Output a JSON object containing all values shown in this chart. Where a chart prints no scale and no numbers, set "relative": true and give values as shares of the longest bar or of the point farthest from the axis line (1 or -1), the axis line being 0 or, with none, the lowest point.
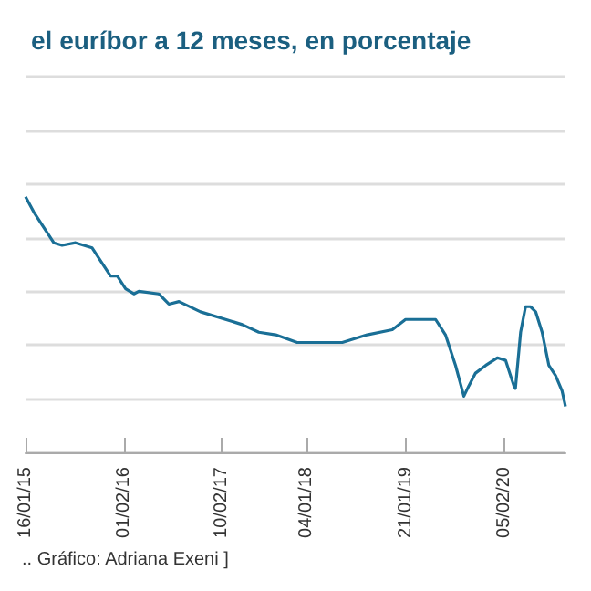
{
  "chart_data": {
    "type": "line",
    "title": "el euríbor a 12 meses, en porcentaje",
    "relative": true,
    "grid": "y",
    "tick_labels": "x",
    "marker": "none",
    "line_style": "solid",
    "annotations": [
      ".. Gráfico: Adriana Exeni ]"
    ],
    "xlim": [
      "2015-01-16",
      "2020-09-29"
    ],
    "xticks": [
      {
        "value": "2015-01-16",
        "label": "16/01/15"
      },
      {
        "value": "2016-02-01",
        "label": "01/02/16"
      },
      {
        "value": "2017-02-10",
        "label": "10/02/17"
      },
      {
        "value": "2018-01-04",
        "label": "04/01/18"
      },
      {
        "value": "2019-01-21",
        "label": "21/01/19"
      },
      {
        "value": "2020-02-05",
        "label": "05/02/20"
      }
    ],
    "x": [
      "2015-01-16",
      "2015-02-17",
      "2015-03-21",
      "2015-05-05",
      "2015-06-06",
      "2015-07-28",
      "2015-09-30",
      "2015-11-14",
      "2015-12-10",
      "2016-01-05",
      "2016-02-06",
      "2016-03-09",
      "2016-03-28",
      "2016-06-13",
      "2016-07-22",
      "2016-08-30",
      "2016-11-21",
      "2017-02-26",
      "2017-05-01",
      "2017-07-04",
      "2017-09-07",
      "2017-11-29",
      "2018-02-14",
      "2018-05-22",
      "2018-08-26",
      "2018-12-01",
      "2019-01-21",
      "2019-03-26",
      "2019-05-17",
      "2019-06-24",
      "2019-08-02",
      "2019-09-03",
      "2019-09-22",
      "2019-10-18",
      "2019-11-26",
      "2020-01-10",
      "2020-02-11",
      "2020-03-14",
      "2020-03-20",
      "2020-04-09",
      "2020-04-28",
      "2020-05-17",
      "2020-06-06",
      "2020-07-01",
      "2020-07-27",
      "2020-08-22",
      "2020-09-16",
      "2020-09-29"
    ],
    "series": [
      {
        "color": "#1a6f96",
        "values": [
          1,
          0.94,
          0.89,
          0.82,
          0.81,
          0.82,
          0.8,
          0.73,
          0.69,
          0.69,
          0.64,
          0.62,
          0.63,
          0.62,
          0.58,
          0.59,
          0.55,
          0.52,
          0.5,
          0.47,
          0.46,
          0.43,
          0.43,
          0.43,
          0.46,
          0.48,
          0.52,
          0.52,
          0.52,
          0.46,
          0.34,
          0.22,
          0.26,
          0.31,
          0.34,
          0.37,
          0.36,
          0.26,
          0.25,
          0.47,
          0.57,
          0.57,
          0.55,
          0.47,
          0.34,
          0.3,
          0.24,
          0.18
        ]
      }
    ]
  }
}
